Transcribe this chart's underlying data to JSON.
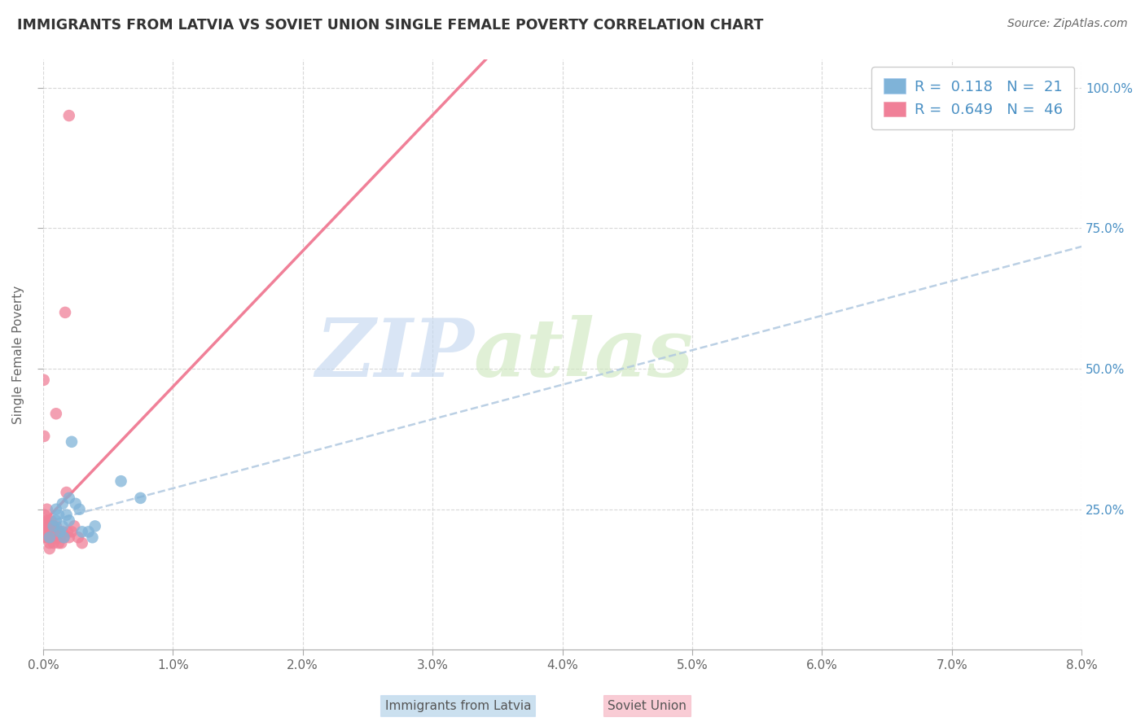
{
  "title": "IMMIGRANTS FROM LATVIA VS SOVIET UNION SINGLE FEMALE POVERTY CORRELATION CHART",
  "source": "Source: ZipAtlas.com",
  "ylabel": "Single Female Poverty",
  "watermark_zip": "ZIP",
  "watermark_atlas": "atlas",
  "legend_latvia_R": "0.118",
  "legend_latvia_N": "21",
  "legend_soviet_R": "0.649",
  "legend_soviet_N": "46",
  "x_min": 0.0,
  "x_max": 0.08,
  "y_min": 0.0,
  "y_max": 1.05,
  "yticks": [
    0.25,
    0.5,
    0.75,
    1.0
  ],
  "ytick_labels_right": [
    "25.0%",
    "50.0%",
    "75.0%",
    "100.0%"
  ],
  "xticks": [
    0.0,
    0.01,
    0.02,
    0.03,
    0.04,
    0.05,
    0.06,
    0.07,
    0.08
  ],
  "xtick_labels": [
    "0.0%",
    "1.0%",
    "2.0%",
    "3.0%",
    "4.0%",
    "5.0%",
    "6.0%",
    "7.0%",
    "8.0%"
  ],
  "latvia_x": [
    0.0005,
    0.0008,
    0.001,
    0.001,
    0.0012,
    0.0013,
    0.0015,
    0.0015,
    0.0016,
    0.0018,
    0.002,
    0.002,
    0.0022,
    0.0025,
    0.0028,
    0.003,
    0.0035,
    0.0038,
    0.004,
    0.006,
    0.0075
  ],
  "latvia_y": [
    0.2,
    0.22,
    0.25,
    0.23,
    0.24,
    0.21,
    0.22,
    0.26,
    0.2,
    0.24,
    0.23,
    0.27,
    0.37,
    0.26,
    0.25,
    0.21,
    0.21,
    0.2,
    0.22,
    0.3,
    0.27
  ],
  "soviet_x": [
    5e-05,
    8e-05,
    0.0001,
    0.0001,
    0.0002,
    0.0002,
    0.0002,
    0.0003,
    0.0003,
    0.0003,
    0.0003,
    0.0004,
    0.0004,
    0.0004,
    0.0005,
    0.0005,
    0.0005,
    0.0005,
    0.0006,
    0.0006,
    0.0006,
    0.0007,
    0.0007,
    0.0007,
    0.0008,
    0.0008,
    0.0008,
    0.001,
    0.001,
    0.0011,
    0.0011,
    0.0012,
    0.0012,
    0.0013,
    0.0014,
    0.0015,
    0.0016,
    0.0017,
    0.0018,
    0.0019,
    0.002,
    0.002,
    0.0022,
    0.0024,
    0.0027,
    0.003
  ],
  "soviet_y": [
    0.48,
    0.38,
    0.22,
    0.24,
    0.2,
    0.23,
    0.21,
    0.22,
    0.25,
    0.2,
    0.22,
    0.23,
    0.2,
    0.21,
    0.22,
    0.19,
    0.2,
    0.18,
    0.23,
    0.21,
    0.2,
    0.22,
    0.2,
    0.21,
    0.2,
    0.19,
    0.22,
    0.22,
    0.42,
    0.2,
    0.21,
    0.19,
    0.21,
    0.2,
    0.19,
    0.21,
    0.2,
    0.6,
    0.28,
    0.21,
    0.2,
    0.95,
    0.21,
    0.22,
    0.2,
    0.19
  ],
  "latvia_dot_color": "#7fb3d8",
  "soviet_dot_color": "#f08098",
  "latvia_line_color": "#b0c8e0",
  "soviet_line_color": "#f08098",
  "legend_text_color": "#4a90c4",
  "background_color": "#ffffff",
  "grid_color": "#d8d8d8",
  "title_color": "#333333",
  "axis_label_color": "#666666",
  "right_axis_color": "#4a90c4",
  "watermark_color_zip": "#c5d8f0",
  "watermark_color_atlas": "#d0e8c0",
  "bottom_legend_latvia": "Immigrants from Latvia",
  "bottom_legend_soviet": "Soviet Union"
}
